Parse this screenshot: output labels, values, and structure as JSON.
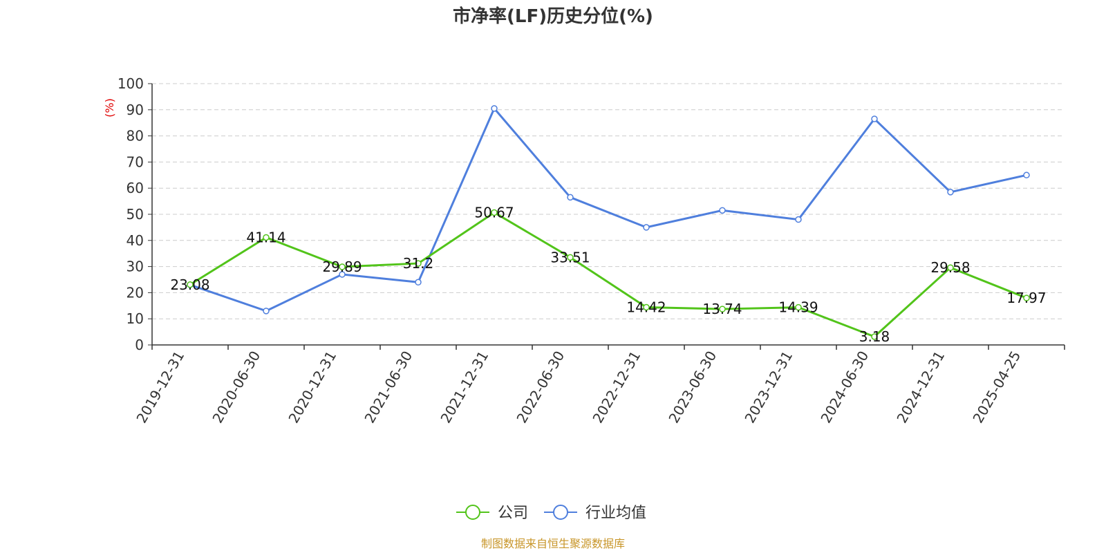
{
  "chart_data": {
    "type": "line",
    "title": "市净率(LF)历史分位(%)",
    "ylabel": "(%)",
    "ylim": [
      0,
      100
    ],
    "yticks": [
      0,
      10,
      20,
      30,
      40,
      50,
      60,
      70,
      80,
      90,
      100
    ],
    "categories": [
      "2019-12-31",
      "2020-06-30",
      "2020-12-31",
      "2021-06-30",
      "2021-12-31",
      "2022-06-30",
      "2022-12-31",
      "2023-06-30",
      "2023-12-31",
      "2024-06-30",
      "2024-12-31",
      "2025-04-25"
    ],
    "series": [
      {
        "name": "公司",
        "color": "#52c41a",
        "values": [
          23.08,
          41.14,
          29.89,
          31.2,
          50.67,
          33.51,
          14.42,
          13.74,
          14.39,
          3.18,
          29.58,
          17.97
        ],
        "labels": [
          "23.08",
          "41.14",
          "29.89",
          "31.2",
          "50.67",
          "33.51",
          "14.42",
          "13.74",
          "14.39",
          "3.18",
          "29.58",
          "17.97"
        ]
      },
      {
        "name": "行业均值",
        "color": "#4f7fdd",
        "values": [
          23.0,
          13.0,
          27.0,
          24.0,
          90.5,
          56.5,
          45.0,
          51.5,
          48.0,
          86.5,
          58.5,
          65.0
        ]
      }
    ],
    "grid": true,
    "legend_position": "bottom-center",
    "source": "制图数据来自恒生聚源数据库",
    "source_color": "#c8962a"
  }
}
